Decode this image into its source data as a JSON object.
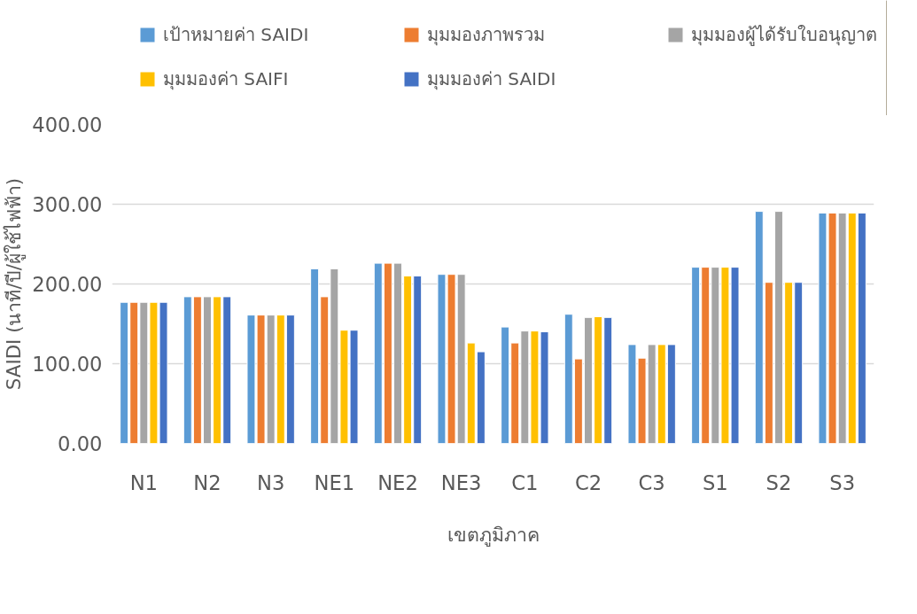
{
  "chart_data": {
    "type": "bar",
    "xlabel": "เขตภูมิภาค",
    "ylabel": "SAIDI (นาที/ปี/ผู้ใช้ไฟฟ้า)",
    "categories": [
      "N1",
      "N2",
      "N3",
      "NE1",
      "NE2",
      "NE3",
      "C1",
      "C2",
      "C3",
      "S1",
      "S2",
      "S3"
    ],
    "series": [
      {
        "name": "เป้าหมายค่า SAIDI",
        "color": "#5b9bd5",
        "values": [
          177,
          184,
          161,
          219,
          226,
          212,
          146,
          162,
          124,
          221,
          291,
          289
        ]
      },
      {
        "name": "มุมมองภาพรวม",
        "color": "#ed7d31",
        "values": [
          177,
          184,
          161,
          184,
          226,
          212,
          126,
          106,
          107,
          221,
          202,
          289
        ]
      },
      {
        "name": "มุมมองผู้ได้รับใบอนุญาต",
        "color": "#a5a5a5",
        "values": [
          177,
          184,
          161,
          219,
          226,
          212,
          141,
          158,
          124,
          221,
          291,
          289
        ]
      },
      {
        "name": "มุมมองค่า SAIFI",
        "color": "#ffc000",
        "values": [
          177,
          184,
          161,
          142,
          210,
          126,
          141,
          159,
          124,
          221,
          202,
          289
        ]
      },
      {
        "name": "มุมมองค่า SAIDI",
        "color": "#4472c4",
        "values": [
          177,
          184,
          161,
          142,
          210,
          115,
          140,
          158,
          124,
          221,
          202,
          289
        ]
      }
    ],
    "ylim": [
      0,
      400
    ],
    "yticks": [
      {
        "value": 0,
        "label": "0.00"
      },
      {
        "value": 100,
        "label": "100.00"
      },
      {
        "value": 200,
        "label": "200.00"
      },
      {
        "value": 300,
        "label": "300.00"
      },
      {
        "value": 400,
        "label": "400.00"
      }
    ],
    "grid": "y",
    "legend": "top"
  }
}
